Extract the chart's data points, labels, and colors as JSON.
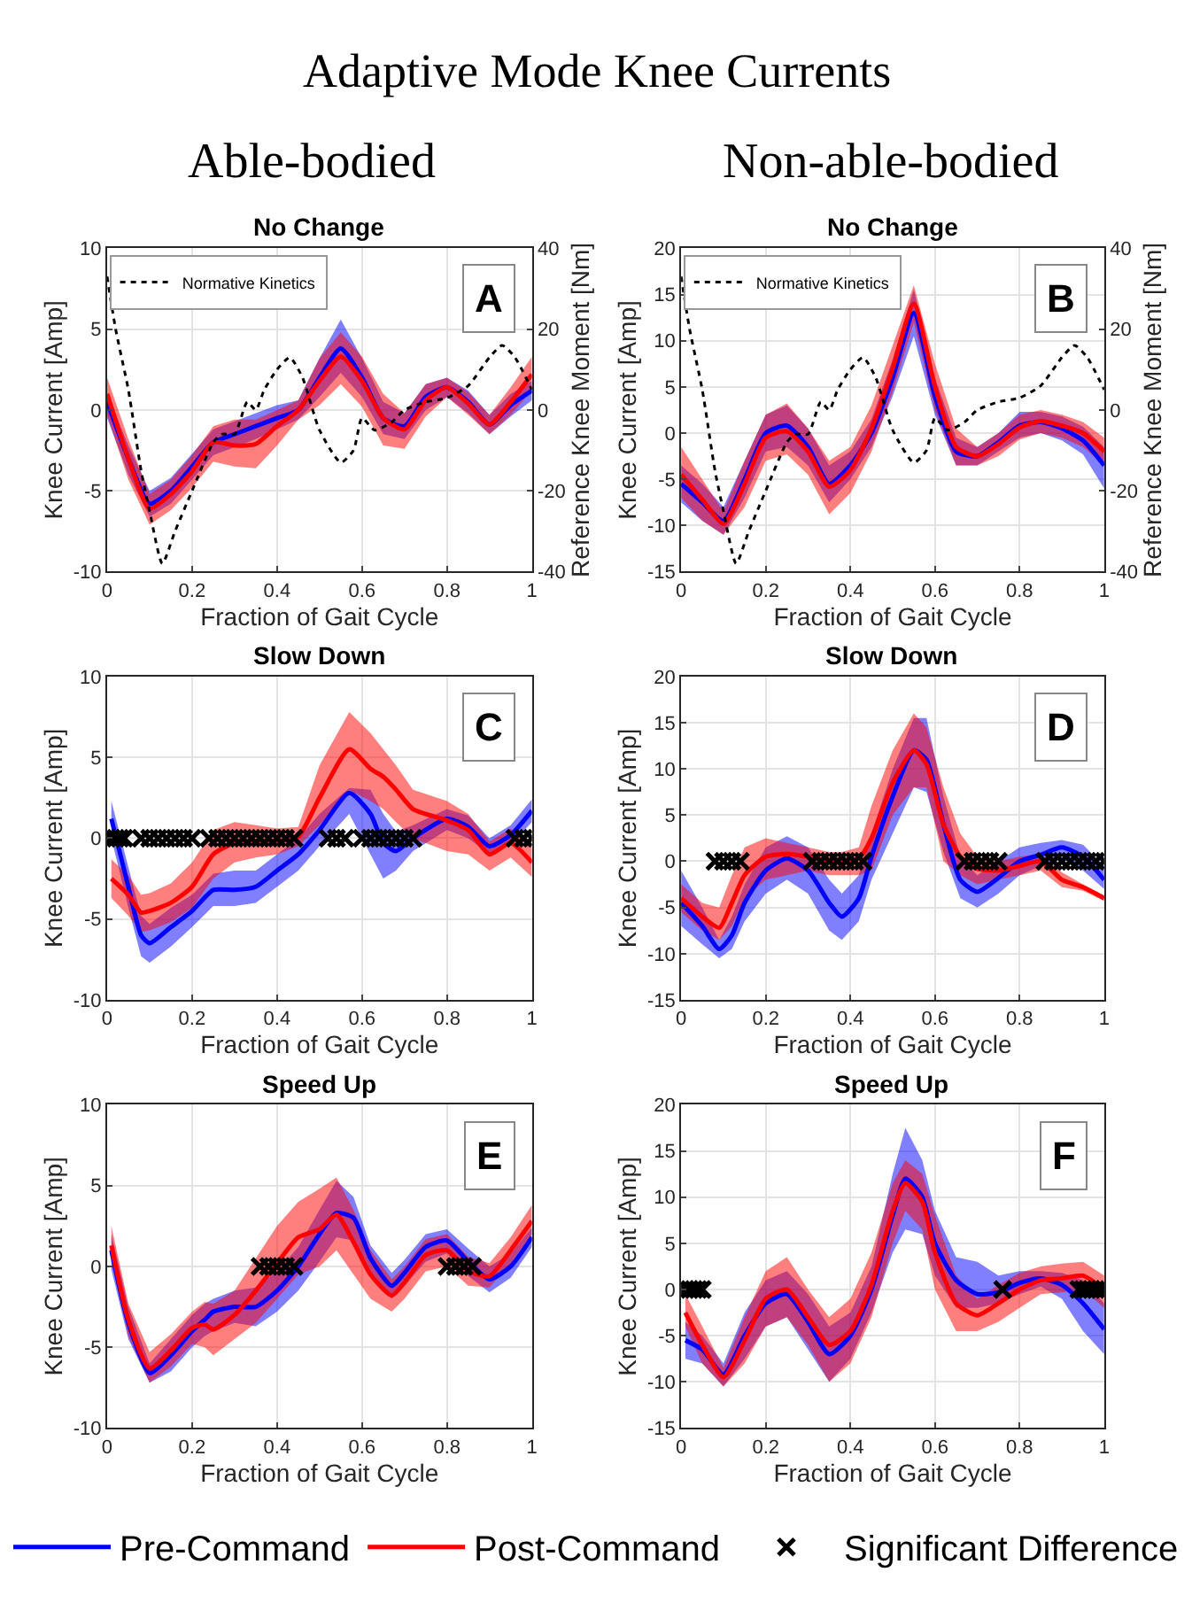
{
  "chart_data": [
    {
      "type": "other",
      "title": "Adaptive Mode Knee Currents",
      "annotations": [
        "Able-bodied",
        "Non-able-bodied"
      ]
    },
    {
      "type": "line",
      "title": "No Change",
      "xlabel": "Fraction of Gait Cycle",
      "ylabel": "Knee Current [Amp]",
      "y2label": "Reference Knee Moment [Nm]",
      "xlim": [
        0,
        1
      ],
      "xticks": [
        0,
        0.2,
        0.4,
        0.6,
        0.8,
        1
      ],
      "ylim": [
        -10,
        10
      ],
      "yticks": [
        -10,
        -5,
        0,
        5,
        10
      ],
      "y2lim": [
        -40,
        40
      ],
      "y2ticks": [
        -40,
        -20,
        0,
        20,
        40
      ],
      "grid": true,
      "legend": "top left",
      "annotations": [
        "A"
      ],
      "x": [
        0,
        0.05,
        0.1,
        0.15,
        0.2,
        0.25,
        0.3,
        0.35,
        0.4,
        0.45,
        0.5,
        0.55,
        0.6,
        0.65,
        0.7,
        0.75,
        0.8,
        0.85,
        0.9,
        0.95,
        1
      ],
      "series": [
        {
          "color": "#0000ff",
          "values": [
            0.5,
            -3,
            -5.8,
            -5,
            -3.5,
            -2,
            -1.5,
            -1,
            -0.5,
            0,
            2,
            3.8,
            2,
            -0.5,
            -1,
            0.8,
            1.4,
            0.5,
            -0.9,
            0.3,
            1.2
          ],
          "lower": [
            -0.5,
            -4,
            -6.6,
            -5.8,
            -4.3,
            -2.8,
            -2.3,
            -1.8,
            -1.2,
            -0.6,
            0.8,
            2.3,
            0.8,
            -1.5,
            -1.8,
            0,
            0.8,
            -0.2,
            -1.5,
            -0.4,
            0.6
          ],
          "upper": [
            1,
            -2.2,
            -5,
            -4.2,
            -2.7,
            -1.2,
            -0.7,
            -0.2,
            0.3,
            0.6,
            3.2,
            5.6,
            3.2,
            0.5,
            -0.2,
            1.6,
            2,
            1.2,
            -0.3,
            1,
            1.8
          ]
        },
        {
          "color": "#ff0000",
          "values": [
            1,
            -3,
            -6.1,
            -5.2,
            -3.8,
            -2,
            -2.2,
            -2.1,
            -1,
            0,
            1.8,
            3.3,
            1.8,
            -0.5,
            -1.2,
            0.6,
            1.4,
            0.4,
            -0.9,
            0.5,
            2.2
          ],
          "lower": [
            -0.3,
            -4.3,
            -7.1,
            -6.2,
            -4.8,
            -3.2,
            -3.5,
            -3.6,
            -2.2,
            -0.6,
            0.3,
            1.6,
            0.2,
            -2.2,
            -2.4,
            -0.4,
            0.8,
            -0.3,
            -1.5,
            -0.3,
            1.2
          ],
          "upper": [
            2,
            -1.8,
            -5.2,
            -4.3,
            -2.8,
            -1,
            -0.6,
            -0.6,
            0,
            0.6,
            3.2,
            4.8,
            3.3,
            1,
            -0.2,
            1.6,
            2,
            1.1,
            -0.3,
            1.4,
            3.3
          ]
        },
        {
          "name": "Normative Kinetics",
          "color": "#000000",
          "axis": "y2",
          "line_style": "dotted",
          "x": [
            0,
            0.02,
            0.05,
            0.08,
            0.1,
            0.13,
            0.16,
            0.2,
            0.25,
            0.27,
            0.3,
            0.33,
            0.35,
            0.37,
            0.4,
            0.43,
            0.46,
            0.5,
            0.55,
            0.58,
            0.6,
            0.63,
            0.67,
            0.7,
            0.75,
            0.8,
            0.85,
            0.9,
            0.93,
            0.96,
            1
          ],
          "values": [
            33,
            20,
            5,
            -15,
            -25,
            -38,
            -30,
            -20,
            -8,
            -6,
            -6,
            2,
            0,
            5,
            10,
            13,
            8,
            -5,
            -13,
            -10,
            -2,
            -5,
            -3,
            0,
            2,
            3,
            6,
            13,
            16,
            13,
            5
          ]
        }
      ]
    },
    {
      "type": "line",
      "title": "No Change",
      "xlabel": "Fraction of Gait Cycle",
      "ylabel": "Knee Current [Amp]",
      "y2label": "Reference Knee Moment [Nm]",
      "xlim": [
        0,
        1
      ],
      "xticks": [
        0,
        0.2,
        0.4,
        0.6,
        0.8,
        1
      ],
      "ylim": [
        -15,
        20
      ],
      "yticks": [
        -15,
        -10,
        -5,
        0,
        5,
        10,
        15,
        20
      ],
      "y2lim": [
        -40,
        40
      ],
      "y2ticks": [
        -40,
        -20,
        0,
        20,
        40
      ],
      "grid": true,
      "legend": "top left",
      "annotations": [
        "B"
      ],
      "x": [
        0,
        0.05,
        0.1,
        0.15,
        0.2,
        0.25,
        0.3,
        0.35,
        0.4,
        0.45,
        0.5,
        0.55,
        0.6,
        0.65,
        0.7,
        0.75,
        0.8,
        0.85,
        0.9,
        0.95,
        1
      ],
      "series": [
        {
          "color": "#0000ff",
          "values": [
            -5.5,
            -7.5,
            -9.5,
            -5,
            0,
            0.8,
            -1.5,
            -5.5,
            -3.5,
            0,
            6,
            13,
            4,
            -2,
            -2.5,
            -1,
            0.8,
            1.2,
            0.5,
            -0.8,
            -3.5
          ],
          "lower": [
            -7.5,
            -9.5,
            -11,
            -7,
            -2,
            -1.5,
            -3.5,
            -7.5,
            -5,
            -1.5,
            4,
            10.5,
            2,
            -3.5,
            -3.5,
            -2,
            -0.5,
            0,
            -0.8,
            -2.3,
            -6
          ],
          "upper": [
            -3.5,
            -5.5,
            -8,
            -3,
            2,
            3,
            0.5,
            -3.5,
            -2,
            1.5,
            8,
            15.5,
            6,
            -0.5,
            -1.5,
            0,
            2.3,
            2.3,
            1.8,
            0.7,
            -1.5
          ]
        },
        {
          "color": "#ff0000",
          "values": [
            -4.5,
            -7.2,
            -9.8,
            -5.5,
            -0.5,
            0.2,
            -2,
            -5.8,
            -4,
            0.5,
            7,
            14,
            5,
            -1.5,
            -2.5,
            -1.2,
            0.6,
            1.3,
            0.8,
            0,
            -2
          ],
          "lower": [
            -7,
            -9.5,
            -11,
            -8,
            -3,
            -2.3,
            -4.5,
            -8.8,
            -6.5,
            -2,
            4.5,
            12,
            2.5,
            -3.5,
            -3.5,
            -2.5,
            -0.7,
            0,
            -0.5,
            -1.5,
            -3.5
          ],
          "upper": [
            -1.5,
            -5,
            -8.5,
            -3,
            2,
            3.2,
            0.5,
            -3,
            -1.5,
            3,
            9.5,
            16,
            7.5,
            0.5,
            -1.5,
            0,
            2,
            2.5,
            2,
            1.2,
            -0.5
          ]
        },
        {
          "name": "Normative Kinetics",
          "color": "#000000",
          "axis": "y2",
          "line_style": "dotted",
          "x": [
            0,
            0.02,
            0.05,
            0.08,
            0.1,
            0.13,
            0.16,
            0.2,
            0.25,
            0.27,
            0.3,
            0.33,
            0.35,
            0.37,
            0.4,
            0.43,
            0.46,
            0.5,
            0.55,
            0.58,
            0.6,
            0.63,
            0.67,
            0.7,
            0.75,
            0.8,
            0.85,
            0.9,
            0.93,
            0.96,
            1
          ],
          "values": [
            33,
            20,
            5,
            -15,
            -25,
            -38,
            -30,
            -20,
            -8,
            -6,
            -6,
            2,
            0,
            5,
            10,
            13,
            8,
            -5,
            -13,
            -10,
            -2,
            -5,
            -3,
            0,
            2,
            3,
            6,
            13,
            16,
            13,
            5
          ]
        }
      ]
    },
    {
      "type": "line",
      "title": "Slow Down",
      "xlabel": "Fraction of Gait Cycle",
      "ylabel": "Knee Current [Amp]",
      "xlim": [
        0,
        1
      ],
      "xticks": [
        0,
        0.2,
        0.4,
        0.6,
        0.8,
        1
      ],
      "ylim": [
        -10,
        10
      ],
      "yticks": [
        -10,
        -5,
        0,
        5,
        10
      ],
      "grid": true,
      "legend": "bottom",
      "annotations": [
        "C"
      ],
      "x": [
        0.01,
        0.05,
        0.08,
        0.1,
        0.15,
        0.2,
        0.25,
        0.3,
        0.35,
        0.4,
        0.45,
        0.5,
        0.57,
        0.62,
        0.65,
        0.68,
        0.72,
        0.8,
        0.85,
        0.9,
        0.95,
        1
      ],
      "series": [
        {
          "name": "Pre-Command",
          "color": "#0000ff",
          "values": [
            1.2,
            -3,
            -6,
            -6.5,
            -5.5,
            -4.5,
            -3.2,
            -3.2,
            -3,
            -2,
            -1,
            0.5,
            2.8,
            1.5,
            -0.3,
            -0.8,
            0,
            1.2,
            0.7,
            -0.5,
            0.2,
            1.7
          ],
          "lower": [
            0,
            -4.3,
            -7.3,
            -7.7,
            -6.7,
            -5.5,
            -4.2,
            -4.2,
            -4,
            -3,
            -2,
            -0.5,
            1.5,
            -1,
            -2.5,
            -2,
            -0.8,
            0.5,
            0,
            -1,
            -0.4,
            1
          ],
          "upper": [
            2.3,
            -1.8,
            -4.8,
            -5.3,
            -4.3,
            -3.5,
            -2.2,
            -2,
            -2,
            -1,
            0,
            1.5,
            3.1,
            3,
            1.5,
            0.4,
            0.8,
            1.8,
            1.4,
            0,
            0.8,
            2.4
          ]
        },
        {
          "name": "Post-Command",
          "color": "#ff0000",
          "values": [
            -2.5,
            -3.5,
            -4.6,
            -4.5,
            -4,
            -3,
            -1,
            -0.3,
            -0.2,
            -0.2,
            0.1,
            2.5,
            5.5,
            4.3,
            3.8,
            3,
            1.8,
            1.1,
            0.5,
            -1,
            -0.3,
            -1.5
          ],
          "lower": [
            -3.7,
            -4.8,
            -5.8,
            -5.7,
            -5.2,
            -4.3,
            -2.5,
            -1.5,
            -1.2,
            -1,
            -0.5,
            0.8,
            3,
            2.3,
            1.8,
            1,
            0,
            -0.8,
            -1,
            -2,
            -1.2,
            -2.4
          ],
          "upper": [
            -1.3,
            -2.3,
            -3.5,
            -3.4,
            -2.8,
            -1.5,
            0.5,
            1,
            0.8,
            0.6,
            0.7,
            4.5,
            7.8,
            6.5,
            5.5,
            4.5,
            3,
            2.3,
            1.5,
            -0.2,
            0.6,
            -0.5
          ]
        },
        {
          "name": "Significant Difference",
          "type": "scatter",
          "marker": "cross",
          "color": "#000000",
          "x": [
            0.01,
            0.02,
            0.03,
            0.04,
            0.08,
            0.1,
            0.12,
            0.14,
            0.16,
            0.18,
            0.2,
            0.24,
            0.26,
            0.28,
            0.3,
            0.32,
            0.34,
            0.36,
            0.38,
            0.4,
            0.42,
            0.44,
            0.52,
            0.54,
            0.56,
            0.6,
            0.62,
            0.64,
            0.66,
            0.68,
            0.7,
            0.72,
            0.96,
            0.98,
            1
          ],
          "values": [
            0,
            0,
            0,
            0,
            0,
            0,
            0,
            0,
            0,
            0,
            0,
            0,
            0,
            0,
            0,
            0,
            0,
            0,
            0,
            0,
            0,
            0,
            0,
            0,
            0,
            0,
            0,
            0,
            0,
            0,
            0,
            0,
            0,
            0,
            0
          ]
        }
      ]
    },
    {
      "type": "line",
      "title": "Slow Down",
      "xlabel": "Fraction of Gait Cycle",
      "ylabel": "Knee Current [Amp]",
      "xlim": [
        0,
        1
      ],
      "xticks": [
        0,
        0.2,
        0.4,
        0.6,
        0.8,
        1
      ],
      "ylim": [
        -15,
        20
      ],
      "yticks": [
        -15,
        -10,
        -5,
        0,
        5,
        10,
        15,
        20
      ],
      "grid": true,
      "annotations": [
        "D"
      ],
      "x": [
        0,
        0.05,
        0.09,
        0.12,
        0.15,
        0.2,
        0.25,
        0.3,
        0.35,
        0.38,
        0.42,
        0.45,
        0.5,
        0.55,
        0.58,
        0.62,
        0.66,
        0.7,
        0.75,
        0.8,
        0.85,
        0.9,
        0.95,
        1
      ],
      "series": [
        {
          "color": "#0000ff",
          "values": [
            -4.5,
            -7,
            -9.5,
            -8,
            -4.5,
            -1,
            0.3,
            -1,
            -4.5,
            -6,
            -4,
            0.5,
            7,
            12,
            11,
            4,
            -2,
            -3.3,
            -1.8,
            0,
            0.7,
            1.5,
            0.5,
            -2
          ],
          "lower": [
            -7,
            -9,
            -10.5,
            -9.5,
            -6.5,
            -3.5,
            -2,
            -3.5,
            -7.5,
            -8.5,
            -6.5,
            -2,
            3,
            8,
            7.5,
            1,
            -4,
            -5,
            -3.5,
            -1.5,
            -0.5,
            0.3,
            -1,
            -3
          ],
          "upper": [
            -1,
            -5,
            -8.5,
            -6,
            -2.5,
            1.5,
            2.7,
            1.5,
            -2,
            -3.5,
            -1.5,
            3,
            10,
            15.5,
            15.5,
            7,
            0.5,
            -1.5,
            0,
            1.5,
            2,
            2.3,
            1.8,
            -0.5
          ]
        },
        {
          "color": "#ff0000",
          "values": [
            -4,
            -6,
            -7.2,
            -4.5,
            -1.5,
            0.5,
            0.8,
            0.5,
            0,
            0,
            0.3,
            2.5,
            8.5,
            12,
            10.5,
            4,
            0.5,
            -0.8,
            -1,
            -0.5,
            0,
            -2,
            -2.8,
            -4
          ],
          "lower": [
            -5.5,
            -7.5,
            -8.5,
            -7,
            -4,
            -2,
            -1.5,
            -1,
            -1.5,
            -1.5,
            -1.5,
            -1,
            5,
            8,
            8,
            0,
            -1.5,
            -2.5,
            -2,
            -1.5,
            -1,
            -2.8,
            -3.2,
            -4.3
          ],
          "upper": [
            -2.5,
            -4.5,
            -5,
            -1.5,
            1.5,
            2.5,
            2,
            1.5,
            1,
            1,
            1.5,
            6,
            12,
            16,
            14.5,
            8,
            3,
            0.5,
            0,
            0.5,
            0.8,
            -1.2,
            -2.5,
            -3.7
          ]
        },
        {
          "type": "scatter",
          "marker": "cross",
          "color": "#000000",
          "x": [
            0.08,
            0.1,
            0.12,
            0.14,
            0.31,
            0.33,
            0.35,
            0.37,
            0.39,
            0.41,
            0.43,
            0.67,
            0.69,
            0.71,
            0.73,
            0.75,
            0.86,
            0.88,
            0.9,
            0.92,
            0.94,
            0.96,
            0.98,
            1
          ],
          "values": [
            0,
            0,
            0,
            0,
            0,
            0,
            0,
            0,
            0,
            0,
            0,
            0,
            0,
            0,
            0,
            0,
            0,
            0,
            0,
            0,
            0,
            0,
            0,
            0
          ]
        }
      ]
    },
    {
      "type": "line",
      "title": "Speed Up",
      "xlabel": "Fraction of Gait Cycle",
      "ylabel": "Knee Current [Amp]",
      "xlim": [
        0,
        1
      ],
      "xticks": [
        0,
        0.2,
        0.4,
        0.6,
        0.8,
        1
      ],
      "ylim": [
        -10,
        10
      ],
      "yticks": [
        -10,
        -5,
        0,
        5,
        10
      ],
      "grid": true,
      "annotations": [
        "E"
      ],
      "x": [
        0.01,
        0.05,
        0.1,
        0.15,
        0.2,
        0.23,
        0.25,
        0.3,
        0.35,
        0.4,
        0.45,
        0.5,
        0.54,
        0.58,
        0.62,
        0.67,
        0.7,
        0.75,
        0.8,
        0.85,
        0.9,
        0.95,
        1
      ],
      "series": [
        {
          "color": "#0000ff",
          "values": [
            1,
            -3.5,
            -6.6,
            -5.5,
            -4,
            -3.3,
            -2.8,
            -2.5,
            -2.5,
            -1.5,
            0,
            2,
            3.3,
            3,
            0.5,
            -1.2,
            -0.4,
            1.2,
            1.6,
            0.3,
            -0.8,
            0,
            1.8
          ],
          "lower": [
            -0.2,
            -4.5,
            -7.2,
            -6.5,
            -5,
            -4.3,
            -4,
            -3.5,
            -3.7,
            -2.8,
            -1.5,
            0.3,
            1.8,
            1.6,
            -0.3,
            -2,
            -1.2,
            0.3,
            0.8,
            -0.6,
            -1.6,
            -0.7,
            1.2
          ],
          "upper": [
            2,
            -2.5,
            -6,
            -4.5,
            -3,
            -2.3,
            -2,
            -1.5,
            -1.3,
            -0.3,
            1.2,
            3.5,
            5.3,
            4.3,
            1.3,
            -0.4,
            0.4,
            2,
            2.3,
            1.1,
            0,
            0.8,
            2.4
          ]
        },
        {
          "color": "#ff0000",
          "values": [
            1.3,
            -3.3,
            -6.3,
            -5.2,
            -3.8,
            -3.6,
            -3.9,
            -3,
            -1.5,
            0.2,
            1.8,
            2.3,
            3.2,
            1.5,
            -0.5,
            -1.8,
            -1,
            0.7,
            1,
            -0.3,
            -0.6,
            1,
            2.8
          ],
          "lower": [
            0.3,
            -4.3,
            -7.2,
            -6.2,
            -4.8,
            -5,
            -5.5,
            -4.5,
            -3.5,
            -2,
            -0.5,
            0,
            1,
            -0.5,
            -2,
            -2.8,
            -2,
            -0.3,
            0,
            -1.2,
            -1.3,
            0.2,
            2
          ],
          "upper": [
            2.5,
            -2.3,
            -5.3,
            -4.2,
            -2.8,
            -2.2,
            -2.3,
            -1.5,
            0.5,
            2.5,
            4,
            4.8,
            5.5,
            3.5,
            1,
            -0.8,
            0,
            1.7,
            2,
            0.6,
            0.2,
            1.8,
            3.8
          ]
        },
        {
          "type": "scatter",
          "marker": "cross",
          "color": "#000000",
          "x": [
            0.36,
            0.38,
            0.4,
            0.42,
            0.44,
            0.8,
            0.82,
            0.84,
            0.86
          ],
          "values": [
            0,
            0,
            0,
            0,
            0,
            0,
            0,
            0,
            0
          ]
        }
      ]
    },
    {
      "type": "line",
      "title": "Speed Up",
      "xlabel": "Fraction of Gait Cycle",
      "ylabel": "Knee Current [Amp]",
      "xlim": [
        0,
        1
      ],
      "xticks": [
        0,
        0.2,
        0.4,
        0.6,
        0.8,
        1
      ],
      "ylim": [
        -15,
        20
      ],
      "yticks": [
        -15,
        -10,
        -5,
        0,
        5,
        10,
        15,
        20
      ],
      "grid": true,
      "annotations": [
        "F"
      ],
      "x": [
        0.01,
        0.05,
        0.1,
        0.15,
        0.2,
        0.25,
        0.3,
        0.35,
        0.4,
        0.45,
        0.5,
        0.53,
        0.57,
        0.6,
        0.65,
        0.7,
        0.75,
        0.8,
        0.85,
        0.9,
        0.95,
        1
      ],
      "series": [
        {
          "color": "#0000ff",
          "values": [
            -5.5,
            -6.5,
            -9.2,
            -5,
            -1.5,
            -0.5,
            -3.5,
            -7,
            -5,
            0,
            8,
            12,
            10,
            5,
            1,
            -0.5,
            -0.3,
            0.7,
            1.2,
            0.5,
            -1.5,
            -4.3
          ],
          "lower": [
            -7.5,
            -8,
            -10.5,
            -7.5,
            -4,
            -3,
            -6.5,
            -10,
            -7.5,
            -2.5,
            4,
            6.5,
            6,
            1.5,
            -2,
            -2,
            -1.5,
            -0.5,
            0.3,
            -1,
            -4.5,
            -7
          ],
          "upper": [
            -3.5,
            -5,
            -8,
            -2.5,
            1,
            2,
            -0.5,
            -4,
            -2.5,
            2.5,
            12.5,
            17.5,
            14,
            8.5,
            3.5,
            3,
            1.5,
            2,
            2,
            1.8,
            1,
            -1.5
          ]
        },
        {
          "color": "#ff0000",
          "values": [
            -2.5,
            -6,
            -9.5,
            -5.5,
            -1,
            0,
            -3,
            -6,
            -4.5,
            0.5,
            8.5,
            11.5,
            9.5,
            4,
            -1.5,
            -2.8,
            -1.5,
            0,
            1,
            1.2,
            1.5,
            0
          ],
          "lower": [
            -4,
            -8,
            -10.5,
            -8,
            -4,
            -3,
            -6,
            -10,
            -8,
            -3,
            5,
            8.5,
            6.5,
            0,
            -4.5,
            -4.5,
            -3.5,
            -2,
            -0.5,
            -0.3,
            0,
            -2
          ],
          "upper": [
            -0.5,
            -4,
            -8.5,
            -3,
            2,
            3.5,
            0,
            -3,
            -1,
            4,
            11.5,
            14,
            12.5,
            8,
            1.5,
            -1,
            0.5,
            1.8,
            2.5,
            2.8,
            3,
            1.5
          ]
        },
        {
          "type": "scatter",
          "marker": "cross",
          "color": "#000000",
          "x": [
            0.01,
            0.02,
            0.03,
            0.04,
            0.05,
            0.76,
            0.94,
            0.95,
            0.96,
            0.97,
            0.98,
            0.99,
            1
          ],
          "values": [
            0,
            0,
            0,
            0,
            0,
            0,
            0,
            0,
            0,
            0,
            0,
            0,
            0
          ]
        }
      ]
    }
  ]
}
